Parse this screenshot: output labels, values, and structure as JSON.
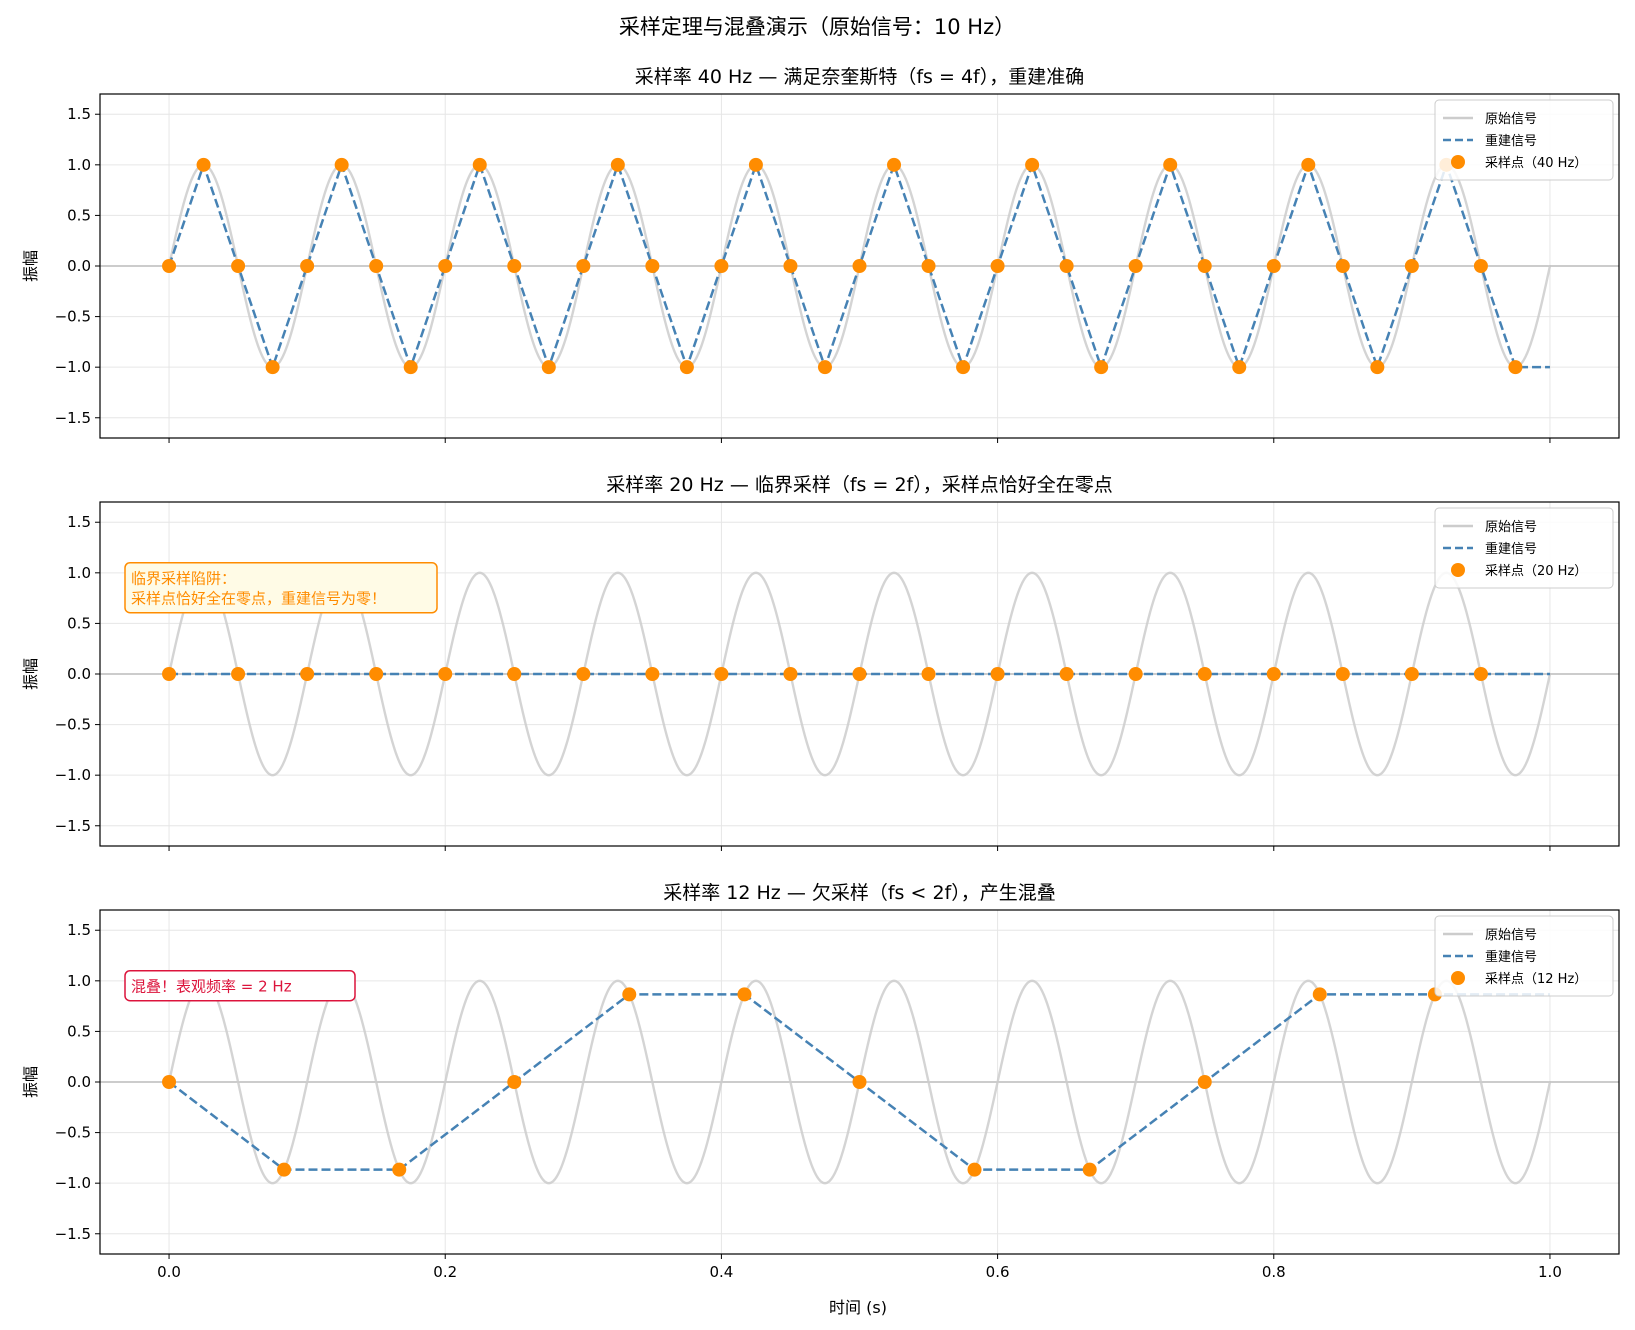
{
  "suptitle": "采样定理与混叠演示（原始信号：10 Hz）",
  "xlabel": "时间 (s)",
  "ylabel": "振幅",
  "x_ticks": [
    "0.0",
    "0.2",
    "0.4",
    "0.6",
    "0.8",
    "1.0"
  ],
  "y_ticks": [
    "−1.5",
    "−1.0",
    "−0.5",
    "0.0",
    "0.5",
    "1.0",
    "1.5"
  ],
  "legend_common": {
    "original": "原始信号",
    "reconstructed": "重建信号"
  },
  "colors": {
    "original": "#cccccc",
    "reconstructed": "#4682b4",
    "samples": "#ff8c00",
    "zero_line": "#808080",
    "warning": "#ff8c00",
    "alias": "#dc143c"
  },
  "chart_data": [
    {
      "type": "line",
      "title": "采样率 40 Hz — 满足奈奎斯特（fs = 4f），重建准确",
      "signal_freq_hz": 10,
      "sample_rate_hz": 40,
      "xlim": [
        -0.05,
        1.05
      ],
      "ylim": [
        -1.7,
        1.7
      ],
      "grid": true,
      "legend": "upper right",
      "series": [
        {
          "name": "原始信号",
          "kind": "sine",
          "freq_hz": 10,
          "x_range": [
            0,
            1
          ]
        },
        {
          "name": "重建信号",
          "kind": "step-linear",
          "x": [
            0,
            0.025,
            0.05,
            0.075,
            0.1,
            0.125,
            0.15,
            0.175,
            0.2,
            0.225,
            0.25,
            0.275,
            0.3,
            0.325,
            0.35,
            0.375,
            0.4,
            0.425,
            0.45,
            0.475,
            0.5,
            0.525,
            0.55,
            0.575,
            0.6,
            0.625,
            0.65,
            0.675,
            0.7,
            0.725,
            0.75,
            0.775,
            0.8,
            0.825,
            0.85,
            0.875,
            0.9,
            0.925,
            0.95,
            0.975,
            1.0
          ],
          "y": [
            0,
            1,
            0,
            -1,
            0,
            1,
            0,
            -1,
            0,
            1,
            0,
            -1,
            0,
            1,
            0,
            -1,
            0,
            1,
            0,
            -1,
            0,
            1,
            0,
            -1,
            0,
            1,
            0,
            -1,
            0,
            1,
            0,
            -1,
            0,
            1,
            0,
            -1,
            0,
            1,
            0,
            -1,
            -1
          ]
        },
        {
          "name": "采样点（40 Hz）",
          "kind": "points",
          "x": [
            0,
            0.025,
            0.05,
            0.075,
            0.1,
            0.125,
            0.15,
            0.175,
            0.2,
            0.225,
            0.25,
            0.275,
            0.3,
            0.325,
            0.35,
            0.375,
            0.4,
            0.425,
            0.45,
            0.475,
            0.5,
            0.525,
            0.55,
            0.575,
            0.6,
            0.625,
            0.65,
            0.675,
            0.7,
            0.725,
            0.75,
            0.775,
            0.8,
            0.825,
            0.85,
            0.875,
            0.9,
            0.925,
            0.95,
            0.975
          ],
          "y": [
            0,
            1,
            0,
            -1,
            0,
            1,
            0,
            -1,
            0,
            1,
            0,
            -1,
            0,
            1,
            0,
            -1,
            0,
            1,
            0,
            -1,
            0,
            1,
            0,
            -1,
            0,
            1,
            0,
            -1,
            0,
            1,
            0,
            -1,
            0,
            1,
            0,
            -1,
            0,
            1,
            0,
            -1
          ]
        }
      ],
      "annotation": null
    },
    {
      "type": "line",
      "title": "采样率 20 Hz — 临界采样（fs = 2f），采样点恰好全在零点",
      "signal_freq_hz": 10,
      "sample_rate_hz": 20,
      "xlim": [
        -0.05,
        1.05
      ],
      "ylim": [
        -1.7,
        1.7
      ],
      "grid": true,
      "legend": "upper right",
      "series": [
        {
          "name": "原始信号",
          "kind": "sine",
          "freq_hz": 10,
          "x_range": [
            0,
            1
          ]
        },
        {
          "name": "重建信号",
          "kind": "step-linear",
          "x": [
            0,
            0.05,
            0.1,
            0.15,
            0.2,
            0.25,
            0.3,
            0.35,
            0.4,
            0.45,
            0.5,
            0.55,
            0.6,
            0.65,
            0.7,
            0.75,
            0.8,
            0.85,
            0.9,
            0.95,
            1.0
          ],
          "y": [
            0,
            0,
            0,
            0,
            0,
            0,
            0,
            0,
            0,
            0,
            0,
            0,
            0,
            0,
            0,
            0,
            0,
            0,
            0,
            0,
            0
          ]
        },
        {
          "name": "采样点（20 Hz）",
          "kind": "points",
          "x": [
            0,
            0.05,
            0.1,
            0.15,
            0.2,
            0.25,
            0.3,
            0.35,
            0.4,
            0.45,
            0.5,
            0.55,
            0.6,
            0.65,
            0.7,
            0.75,
            0.8,
            0.85,
            0.9,
            0.95
          ],
          "y": [
            0,
            0,
            0,
            0,
            0,
            0,
            0,
            0,
            0,
            0,
            0,
            0,
            0,
            0,
            0,
            0,
            0,
            0,
            0,
            0
          ]
        }
      ],
      "annotation": {
        "lines": [
          "临界采样陷阱：",
          "采样点恰好全在零点，重建信号为零！"
        ],
        "style": "warning",
        "placement": "upper-left"
      }
    },
    {
      "type": "line",
      "title": "采样率 12 Hz — 欠采样（fs < 2f），产生混叠",
      "signal_freq_hz": 10,
      "sample_rate_hz": 12,
      "xlim": [
        -0.05,
        1.05
      ],
      "ylim": [
        -1.7,
        1.7
      ],
      "grid": true,
      "legend": "upper right",
      "series": [
        {
          "name": "原始信号",
          "kind": "sine",
          "freq_hz": 10,
          "x_range": [
            0,
            1
          ]
        },
        {
          "name": "重建信号",
          "kind": "step-linear",
          "x": [
            0,
            0.0833,
            0.1667,
            0.25,
            0.3333,
            0.4167,
            0.5,
            0.5833,
            0.6667,
            0.75,
            0.8333,
            0.9167,
            1.0
          ],
          "y": [
            0,
            -0.866,
            -0.866,
            0,
            0.866,
            0.866,
            0,
            -0.866,
            -0.866,
            0,
            0.866,
            0.866,
            0.866
          ]
        },
        {
          "name": "采样点（12 Hz）",
          "kind": "points",
          "x": [
            0,
            0.0833,
            0.1667,
            0.25,
            0.3333,
            0.4167,
            0.5,
            0.5833,
            0.6667,
            0.75,
            0.8333,
            0.9167
          ],
          "y": [
            0,
            -0.866,
            -0.866,
            0,
            0.866,
            0.866,
            0,
            -0.866,
            -0.866,
            0,
            0.866,
            0.866
          ]
        }
      ],
      "annotation": {
        "lines": [
          "混叠！表观频率 = 2 Hz"
        ],
        "style": "alias",
        "placement": "upper-left"
      }
    }
  ]
}
